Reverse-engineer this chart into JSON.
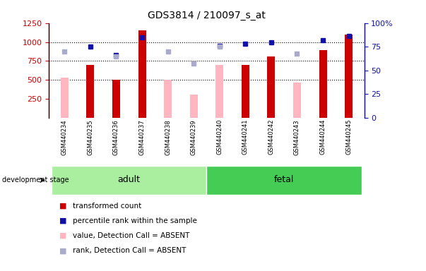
{
  "title": "GDS3814 / 210097_s_at",
  "samples": [
    "GSM440234",
    "GSM440235",
    "GSM440236",
    "GSM440237",
    "GSM440238",
    "GSM440239",
    "GSM440240",
    "GSM440241",
    "GSM440242",
    "GSM440243",
    "GSM440244",
    "GSM440245"
  ],
  "red_values": [
    null,
    700,
    500,
    1150,
    null,
    null,
    null,
    700,
    810,
    null,
    890,
    1100
  ],
  "pink_values": [
    530,
    null,
    null,
    null,
    500,
    310,
    700,
    null,
    null,
    470,
    null,
    null
  ],
  "blue_ranks": [
    null,
    75,
    66,
    85,
    null,
    null,
    76,
    78,
    80,
    null,
    82,
    86
  ],
  "lavender_ranks": [
    70,
    null,
    65,
    null,
    70,
    57,
    75,
    null,
    null,
    68,
    null,
    null
  ],
  "absent_mask": [
    true,
    false,
    false,
    false,
    true,
    true,
    true,
    false,
    false,
    true,
    false,
    false
  ],
  "ylim_left": [
    0,
    1250
  ],
  "ylim_right": [
    0,
    100
  ],
  "yticks_left": [
    250,
    500,
    750,
    1000,
    1250
  ],
  "ytick_labels_left": [
    "250",
    "500",
    "750",
    "1000",
    "1250"
  ],
  "yticks_right": [
    0,
    25,
    50,
    75,
    100
  ],
  "ytick_labels_right": [
    "0",
    "25",
    "50",
    "75",
    "100%"
  ],
  "bar_width": 0.3,
  "red_color": "#CC0000",
  "pink_color": "#FFB6C1",
  "blue_color": "#1111AA",
  "lavender_color": "#AAAACC",
  "adult_color": "#AAEEA0",
  "fetal_color": "#44CC55",
  "tick_area_color": "#C8C8C8",
  "n_adult": 6,
  "n_fetal": 6,
  "legend_items": [
    [
      "#CC0000",
      "transformed count"
    ],
    [
      "#1111AA",
      "percentile rank within the sample"
    ],
    [
      "#FFB6C1",
      "value, Detection Call = ABSENT"
    ],
    [
      "#AAAACC",
      "rank, Detection Call = ABSENT"
    ]
  ]
}
